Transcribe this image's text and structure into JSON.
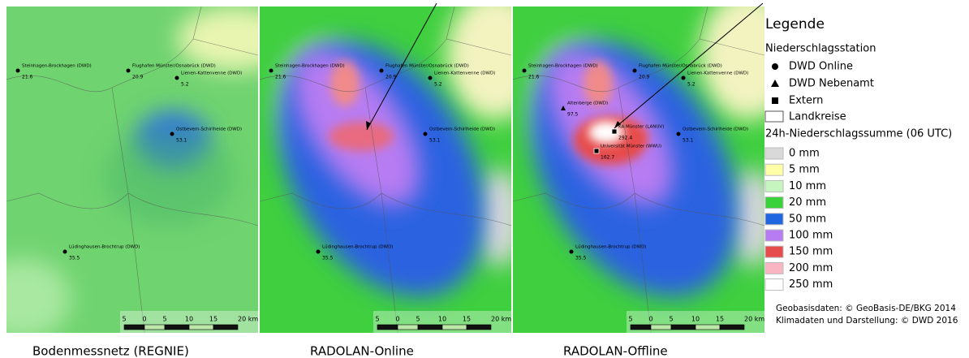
{
  "panels": [
    {
      "caption": "Bodenmessnetz (REGNIE)",
      "stations": [
        {
          "name": "Steinhagen-Brockhagen (DWD)",
          "value": 21.6
        },
        {
          "name": "Flughafen Münster/Osnabrück (DWD)",
          "value": 20.9
        },
        {
          "name": "Lienen-Kattenvenne (DWD)",
          "value": 5.2
        },
        {
          "name": "Ostbevern-Schirlheide (DWD)",
          "value": 53.1
        },
        {
          "name": "Lüdinghausen-Brochtrup (DWD)",
          "value": 35.5
        }
      ],
      "scale_labels": [
        "5",
        "0",
        "5",
        "10",
        "15",
        "20 km"
      ]
    },
    {
      "caption": "RADOLAN-Online",
      "stations": [
        {
          "name": "Steinhagen-Brockhagen (DWD)",
          "value": 21.6
        },
        {
          "name": "Flughafen Münster/Osnabrück (DWD)",
          "value": 20.9
        },
        {
          "name": "Lienen-Kattenvenne (DWD)",
          "value": 5.2
        },
        {
          "name": "Ostbevern-Schirlheide (DWD)",
          "value": 53.1
        },
        {
          "name": "Lüdinghausen-Brochtrup (DWD)",
          "value": 35.5
        }
      ],
      "scale_labels": [
        "5",
        "0",
        "5",
        "10",
        "15",
        "20 km"
      ]
    },
    {
      "caption": "RADOLAN-Offline",
      "stations": [
        {
          "name": "Steinhagen-Brockhagen (DWD)",
          "value": 21.6
        },
        {
          "name": "Flughafen Münster/Osnabrück (DWD)",
          "value": 20.9
        },
        {
          "name": "Lienen-Kattenvenne (DWD)",
          "value": 5.2
        },
        {
          "name": "Ostbevern-Schirlheide (DWD)",
          "value": 53.1
        },
        {
          "name": "Lüdinghausen-Brochtrup (DWD)",
          "value": 35.5
        },
        {
          "name": "Altenberge (DWD)",
          "value": 97.5
        },
        {
          "name": "KA Münster (LANUV)",
          "value": 292.4
        },
        {
          "name": "Universität Münster (WWU)",
          "value": 162.7
        }
      ],
      "scale_labels": [
        "5",
        "0",
        "5",
        "10",
        "15",
        "20 km"
      ]
    }
  ],
  "legend": {
    "title": "Legende",
    "station_heading": "Niederschlagsstation",
    "station_types": [
      "DWD Online",
      "DWD Nebenamt",
      "Extern"
    ],
    "boundary": "Landkreise",
    "precip_heading": "24h-Niederschlagssumme (06 UTC)",
    "classes": [
      {
        "label": "0 mm",
        "color": "#d9d9d9"
      },
      {
        "label": "5 mm",
        "color": "#ffffa8"
      },
      {
        "label": "10 mm",
        "color": "#c6f5bf"
      },
      {
        "label": "20 mm",
        "color": "#3ad23a"
      },
      {
        "label": "50 mm",
        "color": "#1f66e0"
      },
      {
        "label": "100 mm",
        "color": "#b77cf2"
      },
      {
        "label": "150 mm",
        "color": "#e64c4c"
      },
      {
        "label": "200 mm",
        "color": "#f9b5c2"
      },
      {
        "label": "250 mm",
        "color": "#ffffff"
      }
    ],
    "credits": [
      "Geobasisdaten: © GeoBasis-DE/BKG 2014",
      "Klimadaten und Darstellung: © DWD 2016"
    ]
  }
}
